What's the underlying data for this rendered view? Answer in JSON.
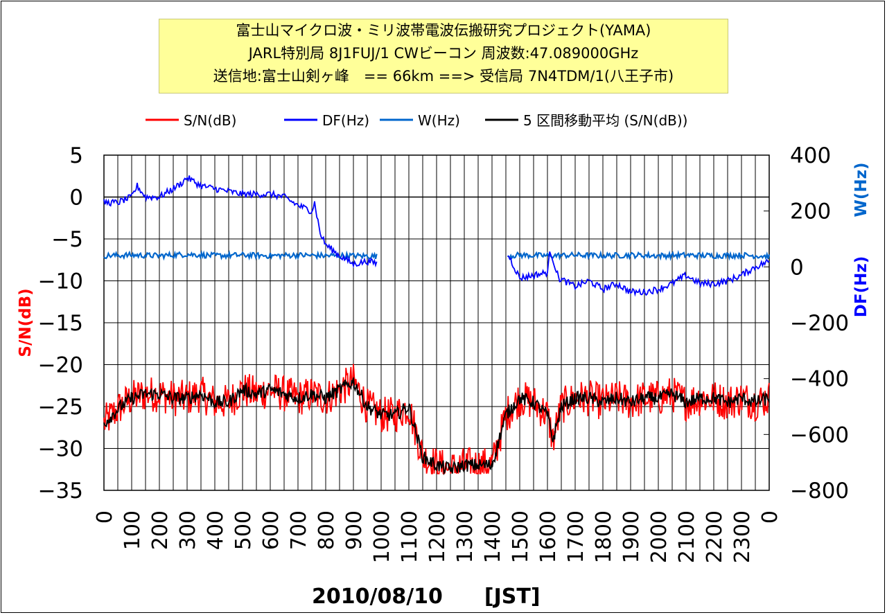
{
  "title_lines": [
    "富士山マイクロ波・ミリ波帯電波伝搬研究プロジェクト(YAMA)",
    "JARL特別局 8J1FUJ/1 CWビーコン 周波数:47.089000GHz",
    "送信地:富士山剣ヶ峰　== 66km ==> 受信局 7N4TDM/1(八王子市)"
  ],
  "xlabel": "2010/08/10　　[JST]",
  "chart_data": {
    "type": "line",
    "title": "",
    "legend_position": "top",
    "grid": true,
    "x_ticks": [
      "0",
      "100",
      "200",
      "300",
      "400",
      "500",
      "600",
      "700",
      "800",
      "900",
      "1000",
      "1100",
      "1200",
      "1300",
      "1400",
      "1500",
      "1600",
      "1700",
      "1800",
      "1900",
      "2000",
      "2100",
      "2200",
      "2300",
      "0"
    ],
    "y_left": {
      "label": "S/N(dB)",
      "range": [
        -35,
        5
      ],
      "ticks": [
        5,
        0,
        -5,
        -10,
        -15,
        -20,
        -25,
        -30,
        -35
      ],
      "color": "#ff0000"
    },
    "y_right": {
      "label_w": "W(Hz)",
      "label_df": "DF(Hz)",
      "range": [
        -800,
        400
      ],
      "ticks": [
        400,
        200,
        0,
        -200,
        -400,
        -600,
        -800
      ],
      "color_w": "#0066cc",
      "color_df": "#0000ff"
    },
    "series": [
      {
        "name": "S/N(dB)",
        "axis": "left",
        "color": "#ff0000",
        "noise": 2.2,
        "x": [
          0,
          30,
          60,
          100,
          150,
          200,
          250,
          300,
          350,
          400,
          450,
          500,
          550,
          600,
          650,
          700,
          750,
          800,
          850,
          900,
          950,
          1000,
          1050,
          1100,
          1150,
          1200,
          1250,
          1300,
          1350,
          1400,
          1450,
          1500,
          1550,
          1600,
          1620,
          1650,
          1700,
          1750,
          1800,
          1850,
          1900,
          1950,
          2000,
          2050,
          2100,
          2150,
          2200,
          2250,
          2300,
          2350,
          2400
        ],
        "y": [
          -27,
          -26,
          -25,
          -24,
          -23.5,
          -23.5,
          -24,
          -24,
          -23.5,
          -24.5,
          -24.5,
          -23,
          -23.5,
          -23,
          -23.5,
          -24,
          -23.5,
          -24,
          -23,
          -22,
          -25,
          -26,
          -26,
          -25,
          -31,
          -32,
          -32.5,
          -32,
          -32,
          -32,
          -26,
          -24,
          -24.5,
          -26,
          -29,
          -25,
          -24,
          -24,
          -24.5,
          -24,
          -24.5,
          -24,
          -24,
          -23.5,
          -24.5,
          -24,
          -24,
          -24.5,
          -24,
          -24.5,
          -24
        ]
      },
      {
        "name": "DF(Hz)",
        "axis": "right",
        "color": "#0000ff",
        "noise": 12,
        "x": [
          0,
          50,
          100,
          120,
          150,
          200,
          250,
          280,
          300,
          350,
          400,
          450,
          500,
          550,
          600,
          650,
          700,
          750,
          760,
          780,
          800,
          850,
          900,
          950,
          1000,
          1460,
          1500,
          1550,
          1600,
          1610,
          1640,
          1700,
          1750,
          1800,
          1850,
          1900,
          1950,
          2000,
          2050,
          2100,
          2150,
          2200,
          2250,
          2300,
          2350,
          2400
        ],
        "y": [
          230,
          230,
          250,
          290,
          250,
          250,
          280,
          300,
          320,
          290,
          280,
          270,
          260,
          260,
          260,
          250,
          220,
          200,
          230,
          120,
          80,
          40,
          10,
          20,
          10,
          40,
          -40,
          -30,
          -20,
          60,
          -40,
          -70,
          -50,
          -80,
          -60,
          -90,
          -90,
          -80,
          -60,
          -30,
          -60,
          -60,
          -50,
          -30,
          0,
          20
        ]
      },
      {
        "name": "W(Hz)",
        "axis": "right",
        "color": "#0066cc",
        "noise": 10,
        "x": [
          0,
          100,
          200,
          300,
          400,
          500,
          600,
          700,
          800,
          900,
          980,
          1460,
          1500,
          1600,
          1700,
          1800,
          1900,
          2000,
          2100,
          2200,
          2300,
          2400
        ],
        "y": [
          40,
          42,
          40,
          45,
          40,
          42,
          40,
          42,
          40,
          40,
          38,
          40,
          42,
          40,
          42,
          40,
          42,
          40,
          42,
          40,
          42,
          38
        ]
      },
      {
        "name": "5 区間移動平均 (S/N(dB))",
        "axis": "left",
        "color": "#000000",
        "noise": 0.8,
        "x": [
          0,
          30,
          60,
          100,
          150,
          200,
          250,
          300,
          350,
          400,
          450,
          500,
          550,
          600,
          650,
          700,
          750,
          800,
          850,
          900,
          950,
          1000,
          1050,
          1100,
          1150,
          1200,
          1250,
          1300,
          1350,
          1400,
          1450,
          1500,
          1550,
          1600,
          1620,
          1650,
          1700,
          1750,
          1800,
          1850,
          1900,
          1950,
          2000,
          2050,
          2100,
          2150,
          2200,
          2250,
          2300,
          2350,
          2400
        ],
        "y": [
          -27,
          -26,
          -25,
          -24,
          -23.5,
          -23.5,
          -24,
          -24,
          -23.5,
          -24.5,
          -24.5,
          -23,
          -23.5,
          -23,
          -23.5,
          -24,
          -23.5,
          -24,
          -23,
          -22,
          -25,
          -26,
          -26,
          -25,
          -31,
          -32,
          -32.5,
          -32,
          -32,
          -32,
          -26,
          -24,
          -24.5,
          -26,
          -29,
          -25,
          -24,
          -24,
          -24.5,
          -24,
          -24.5,
          -24,
          -24,
          -23.5,
          -24.5,
          -24,
          -24,
          -24.5,
          -24,
          -24.5,
          -24
        ]
      }
    ],
    "gaps": [
      {
        "series": "DF(Hz)",
        "from": 985,
        "to": 1455
      },
      {
        "series": "W(Hz)",
        "from": 985,
        "to": 1455
      }
    ]
  }
}
